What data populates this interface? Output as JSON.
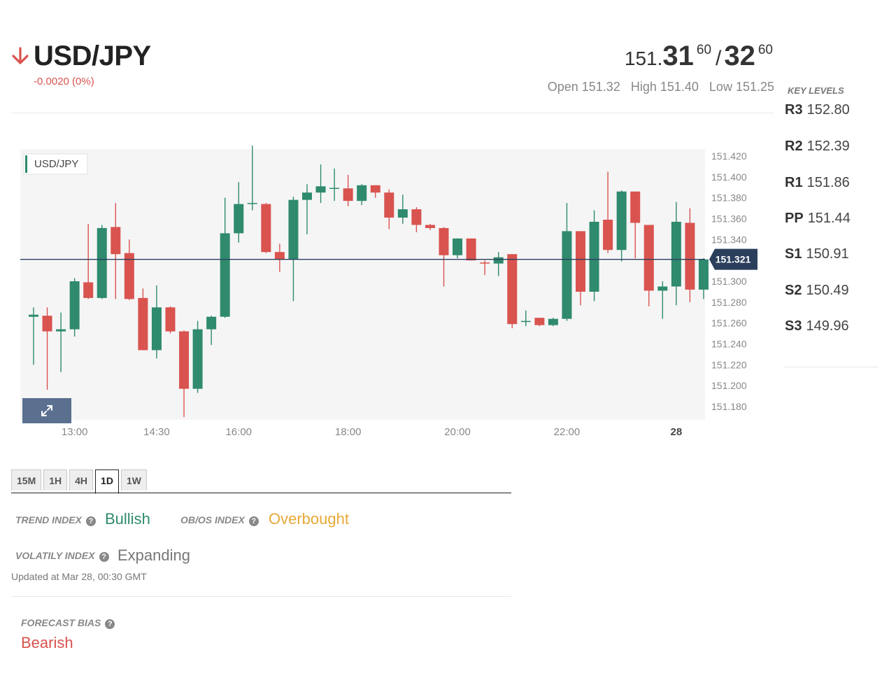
{
  "header": {
    "pair": "USD/JPY",
    "change": "-0.0020 (0%)",
    "bid_main": "151.",
    "bid_big": "31",
    "bid_pip": "60",
    "slash": "/",
    "ask_big": "32",
    "ask_pip": "60",
    "open": "Open 151.32",
    "high": "High 151.40",
    "low": "Low 151.25",
    "colors": {
      "down": "#d9534f"
    }
  },
  "key_levels": {
    "title": "KEY LEVELS",
    "items": [
      {
        "name": "R3",
        "value": "152.80"
      },
      {
        "name": "R2",
        "value": "152.39"
      },
      {
        "name": "R1",
        "value": "151.86"
      },
      {
        "name": "PP",
        "value": "151.44"
      },
      {
        "name": "S1",
        "value": "150.91"
      },
      {
        "name": "S2",
        "value": "150.49"
      },
      {
        "name": "S3",
        "value": "149.96"
      }
    ]
  },
  "chart_data": {
    "type": "candlestick",
    "legend": "USD/JPY",
    "current_price": 151.321,
    "current_price_label": "151.321",
    "ylim": [
      151.17,
      151.43
    ],
    "y_ticks": [
      "151.420",
      "151.400",
      "151.380",
      "151.360",
      "151.340",
      "151.320",
      "151.300",
      "151.280",
      "151.260",
      "151.240",
      "151.220",
      "151.200",
      "151.180"
    ],
    "x_ticks": [
      {
        "label": "13:00",
        "index": 3
      },
      {
        "label": "14:30",
        "index": 9
      },
      {
        "label": "16:00",
        "index": 15
      },
      {
        "label": "18:00",
        "index": 23
      },
      {
        "label": "20:00",
        "index": 31
      },
      {
        "label": "22:00",
        "index": 39
      },
      {
        "label": "28",
        "index": 47,
        "bold": true
      }
    ],
    "candles": [
      {
        "o": 151.266,
        "h": 151.275,
        "l": 151.22,
        "c": 151.268
      },
      {
        "o": 151.267,
        "h": 151.275,
        "l": 151.196,
        "c": 151.252
      },
      {
        "o": 151.252,
        "h": 151.27,
        "l": 151.213,
        "c": 151.254
      },
      {
        "o": 151.254,
        "h": 151.303,
        "l": 151.247,
        "c": 151.3
      },
      {
        "o": 151.299,
        "h": 151.355,
        "l": 151.283,
        "c": 151.284
      },
      {
        "o": 151.284,
        "h": 151.354,
        "l": 151.283,
        "c": 151.351
      },
      {
        "o": 151.352,
        "h": 151.375,
        "l": 151.283,
        "c": 151.326
      },
      {
        "o": 151.327,
        "h": 151.34,
        "l": 151.282,
        "c": 151.283
      },
      {
        "o": 151.284,
        "h": 151.293,
        "l": 151.234,
        "c": 151.234
      },
      {
        "o": 151.234,
        "h": 151.296,
        "l": 151.226,
        "c": 151.275
      },
      {
        "o": 151.275,
        "h": 151.276,
        "l": 151.25,
        "c": 151.252
      },
      {
        "o": 151.252,
        "h": 151.253,
        "l": 151.17,
        "c": 151.197
      },
      {
        "o": 151.197,
        "h": 151.262,
        "l": 151.193,
        "c": 151.254
      },
      {
        "o": 151.254,
        "h": 151.267,
        "l": 151.239,
        "c": 151.266
      },
      {
        "o": 151.266,
        "h": 151.38,
        "l": 151.265,
        "c": 151.346
      },
      {
        "o": 151.346,
        "h": 151.395,
        "l": 151.337,
        "c": 151.374
      },
      {
        "o": 151.374,
        "h": 151.43,
        "l": 151.368,
        "c": 151.375
      },
      {
        "o": 151.374,
        "h": 151.375,
        "l": 151.327,
        "c": 151.328
      },
      {
        "o": 151.328,
        "h": 151.336,
        "l": 151.309,
        "c": 151.321
      },
      {
        "o": 151.321,
        "h": 151.381,
        "l": 151.281,
        "c": 151.378
      },
      {
        "o": 151.378,
        "h": 151.393,
        "l": 151.345,
        "c": 151.385
      },
      {
        "o": 151.385,
        "h": 151.412,
        "l": 151.375,
        "c": 151.391
      },
      {
        "o": 151.389,
        "h": 151.408,
        "l": 151.377,
        "c": 151.389
      },
      {
        "o": 151.389,
        "h": 151.402,
        "l": 151.372,
        "c": 151.377
      },
      {
        "o": 151.377,
        "h": 151.393,
        "l": 151.373,
        "c": 151.392
      },
      {
        "o": 151.392,
        "h": 151.392,
        "l": 151.38,
        "c": 151.385
      },
      {
        "o": 151.385,
        "h": 151.388,
        "l": 151.35,
        "c": 151.361
      },
      {
        "o": 151.361,
        "h": 151.383,
        "l": 151.355,
        "c": 151.369
      },
      {
        "o": 151.369,
        "h": 151.371,
        "l": 151.347,
        "c": 151.354
      },
      {
        "o": 151.354,
        "h": 151.355,
        "l": 151.349,
        "c": 151.351
      },
      {
        "o": 151.351,
        "h": 151.352,
        "l": 151.295,
        "c": 151.325
      },
      {
        "o": 151.325,
        "h": 151.341,
        "l": 151.322,
        "c": 151.341
      },
      {
        "o": 151.341,
        "h": 151.341,
        "l": 151.32,
        "c": 151.32
      },
      {
        "o": 151.318,
        "h": 151.32,
        "l": 151.306,
        "c": 151.317
      },
      {
        "o": 151.317,
        "h": 151.328,
        "l": 151.305,
        "c": 151.323
      },
      {
        "o": 151.326,
        "h": 151.326,
        "l": 151.255,
        "c": 151.259
      },
      {
        "o": 151.261,
        "h": 151.272,
        "l": 151.257,
        "c": 151.262
      },
      {
        "o": 151.265,
        "h": 151.265,
        "l": 151.257,
        "c": 151.258
      },
      {
        "o": 151.258,
        "h": 151.265,
        "l": 151.257,
        "c": 151.264
      },
      {
        "o": 151.264,
        "h": 151.375,
        "l": 151.262,
        "c": 151.348
      },
      {
        "o": 151.348,
        "h": 151.348,
        "l": 151.277,
        "c": 151.29
      },
      {
        "o": 151.29,
        "h": 151.368,
        "l": 151.281,
        "c": 151.357
      },
      {
        "o": 151.359,
        "h": 151.405,
        "l": 151.327,
        "c": 151.33
      },
      {
        "o": 151.33,
        "h": 151.387,
        "l": 151.319,
        "c": 151.386
      },
      {
        "o": 151.386,
        "h": 151.386,
        "l": 151.322,
        "c": 151.356
      },
      {
        "o": 151.354,
        "h": 151.354,
        "l": 151.276,
        "c": 151.291
      },
      {
        "o": 151.291,
        "h": 151.3,
        "l": 151.264,
        "c": 151.295
      },
      {
        "o": 151.295,
        "h": 151.376,
        "l": 151.277,
        "c": 151.357
      },
      {
        "o": 151.356,
        "h": 151.37,
        "l": 151.28,
        "c": 151.292
      },
      {
        "o": 151.292,
        "h": 151.322,
        "l": 151.283,
        "c": 151.321
      }
    ],
    "colors": {
      "up": "#2f8a6e",
      "down": "#d9534f",
      "price_line": "#2b3f5c",
      "grid_bg": "#f5f5f5"
    }
  },
  "timeframes": {
    "items": [
      "15M",
      "1H",
      "4H",
      "1D",
      "1W"
    ],
    "active": "1D"
  },
  "indicators": {
    "trend_label": "TREND INDEX",
    "trend_value": "Bullish",
    "obos_label": "OB/OS INDEX",
    "obos_value": "Overbought",
    "volatility_label": "VOLATILY INDEX",
    "volatility_value": "Expanding",
    "help_glyph": "?",
    "updated": "Updated at Mar 28, 00:30 GMT",
    "forecast_label": "FORECAST BIAS",
    "forecast_value": "Bearish",
    "colors": {
      "bullish": "#2f8a6e",
      "overbought": "#e8a838",
      "expanding": "#777777",
      "bearish": "#d9534f"
    }
  }
}
